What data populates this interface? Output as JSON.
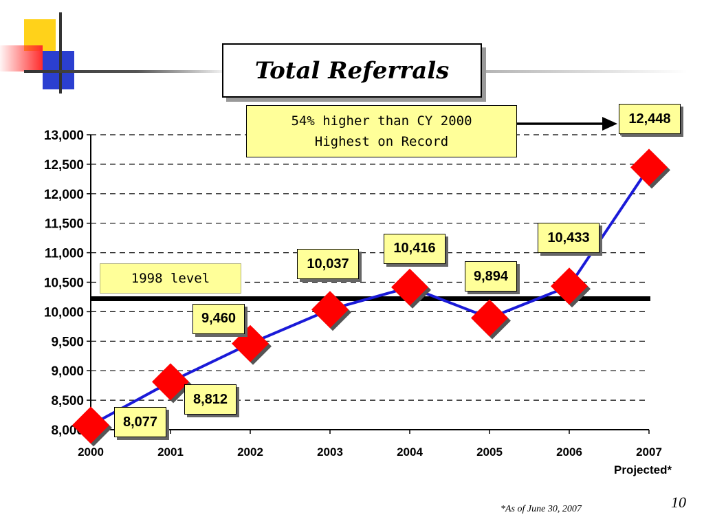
{
  "title": "Total Referrals",
  "note": {
    "line1": "54% higher than CY 2000",
    "line2": "Highest on Record"
  },
  "level_label": "1998 level",
  "projected_label": "Projected*",
  "footnote": "*As of June 30, 2007",
  "page_number": "10",
  "colors": {
    "line": "#1a1ad8",
    "marker": "#ff0000",
    "callout": "#ffff99",
    "reference": "#000000"
  },
  "chart_data": {
    "type": "line",
    "title": "Total Referrals",
    "x": [
      "2000",
      "2001",
      "2002",
      "2003",
      "2004",
      "2005",
      "2006",
      "2007"
    ],
    "values": [
      8077,
      8812,
      9460,
      10037,
      10416,
      9894,
      10433,
      12448
    ],
    "data_labels": [
      "8,077",
      "8,812",
      "9,460",
      "10,037",
      "10,416",
      "9,894",
      "10,433",
      "12,448"
    ],
    "y_ticks": [
      8000,
      8500,
      9000,
      9500,
      10000,
      10500,
      11000,
      11500,
      12000,
      12500,
      13000
    ],
    "y_tick_labels": [
      "8,000",
      "8,500",
      "9,000",
      "9,500",
      "10,000",
      "10,500",
      "11,000",
      "11,500",
      "12,000",
      "12,500",
      "13,000"
    ],
    "ylim": [
      8000,
      13000
    ],
    "reference_line": {
      "value": 10220,
      "label": "1998 level"
    },
    "grid": true,
    "xlabel": "",
    "ylabel": ""
  }
}
